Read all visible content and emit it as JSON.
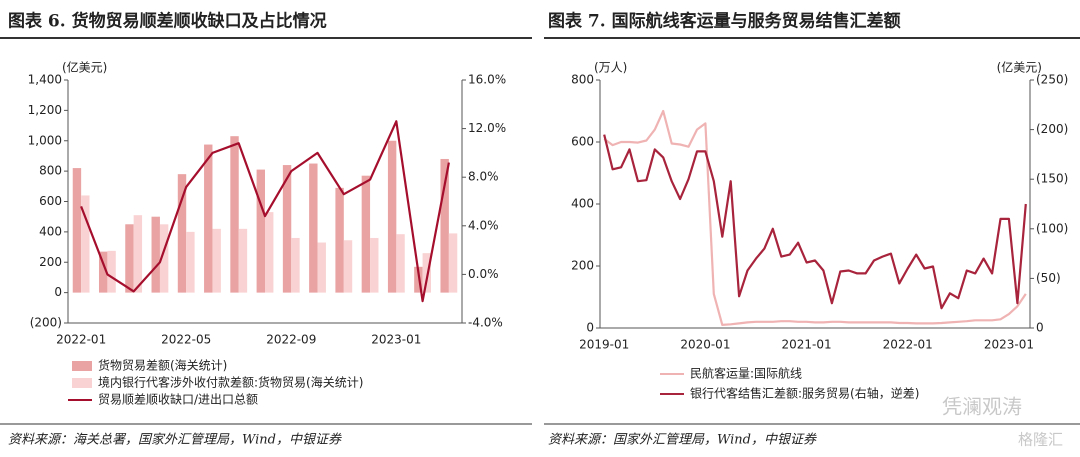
{
  "chart_data": [
    {
      "type": "bar",
      "title": "图表 6. 货物贸易顺差顺收缺口及占比情况",
      "y_label": "(亿美元)",
      "categories": [
        "2022-01",
        null,
        null,
        null,
        "2022-05",
        null,
        null,
        null,
        "2022-09",
        null,
        null,
        null,
        "2023-01",
        null,
        null
      ],
      "series": [
        {
          "name": "货物贸易差额(海关统计)",
          "type": "bar",
          "color": "#e9a3a3",
          "values": [
            820,
            270,
            450,
            500,
            780,
            975,
            1030,
            810,
            840,
            850,
            690,
            770,
            1000,
            170,
            880
          ]
        },
        {
          "name": "境内银行代客涉外收付款差额:货物贸易(海关统计)",
          "type": "bar",
          "color": "#f9d3d3",
          "values": [
            640,
            275,
            510,
            450,
            400,
            420,
            420,
            530,
            360,
            330,
            345,
            360,
            385,
            260,
            390
          ]
        },
        {
          "name": "贸易顺差顺收缺口/进出口总额",
          "type": "line",
          "axis": "y2",
          "color": "#a50f2d",
          "values": [
            5.6,
            0.0,
            -1.4,
            1.0,
            7.2,
            10.0,
            10.8,
            4.8,
            8.5,
            10.0,
            6.6,
            7.8,
            12.6,
            -2.2,
            9.2
          ]
        }
      ],
      "ylim": [
        -200,
        1400
      ],
      "yticks": [
        {
          "value": -200,
          "label": "(200)"
        },
        0,
        200,
        400,
        600,
        800,
        {
          "value": 1000,
          "label": "1,000"
        },
        {
          "value": 1200,
          "label": "1,200"
        },
        {
          "value": 1400,
          "label": "1,400"
        }
      ],
      "y2lim": [
        -4,
        16
      ],
      "y2ticks": [
        {
          "value": -4,
          "label": "-4.0%"
        },
        {
          "value": 0,
          "label": "0.0%"
        },
        {
          "value": 4,
          "label": "4.0%"
        },
        {
          "value": 8,
          "label": "8.0%"
        },
        {
          "value": 12,
          "label": "12.0%"
        },
        {
          "value": 16,
          "label": "16.0%"
        }
      ],
      "source": "资料来源：海关总署，国家外汇管理局，Wind，中银证券"
    },
    {
      "type": "line",
      "title": "图表 7. 国际航线客运量与服务贸易结售汇差额",
      "y_label": "(万人)",
      "y2_label": "(亿美元)",
      "categories": [
        "2019-01",
        null,
        null,
        null,
        null,
        null,
        null,
        null,
        null,
        null,
        null,
        null,
        "2020-01",
        null,
        null,
        null,
        null,
        null,
        null,
        null,
        null,
        null,
        null,
        null,
        "2021-01",
        null,
        null,
        null,
        null,
        null,
        null,
        null,
        null,
        null,
        null,
        null,
        "2022-01",
        null,
        null,
        null,
        null,
        null,
        null,
        null,
        null,
        null,
        null,
        null,
        "2023-01",
        null,
        null
      ],
      "series": [
        {
          "name": "民航客运量:国际航线",
          "type": "line",
          "color": "#f0b3b3",
          "values": [
            610,
            590,
            600,
            600,
            598,
            605,
            640,
            700,
            595,
            592,
            585,
            640,
            660,
            110,
            10,
            12,
            15,
            18,
            20,
            20,
            20,
            22,
            22,
            20,
            20,
            18,
            18,
            20,
            20,
            18,
            18,
            18,
            18,
            18,
            18,
            16,
            16,
            15,
            15,
            15,
            16,
            18,
            20,
            22,
            25,
            25,
            25,
            28,
            45,
            70,
            110
          ]
        },
        {
          "name": "银行代客结售汇差额:服务贸易(右轴，逆差)",
          "type": "line",
          "axis": "y2",
          "color": "#a8233c",
          "values": [
            195,
            160,
            162,
            180,
            148,
            149,
            180,
            172,
            148,
            130,
            150,
            178,
            178,
            148,
            92,
            148,
            32,
            58,
            70,
            80,
            100,
            72,
            74,
            86,
            66,
            68,
            58,
            25,
            57,
            58,
            55,
            55,
            68,
            72,
            75,
            45,
            60,
            74,
            60,
            62,
            20,
            35,
            30,
            58,
            55,
            70,
            55,
            110,
            110,
            25,
            125
          ]
        }
      ],
      "ylim": [
        0,
        800
      ],
      "yticks": [
        0,
        200,
        400,
        600,
        800
      ],
      "y2lim": [
        0,
        250
      ],
      "y2ticks": [
        0,
        {
          "value": 50,
          "label": "(50)"
        },
        {
          "value": 100,
          "label": "(100)"
        },
        {
          "value": 150,
          "label": "(150)"
        },
        {
          "value": 200,
          "label": "(200)"
        },
        {
          "value": 250,
          "label": "(250)"
        }
      ],
      "source": "资料来源：国家外汇管理局，Wind，中银证券"
    }
  ],
  "watermark": [
    "凭澜观涛",
    "格隆汇"
  ]
}
